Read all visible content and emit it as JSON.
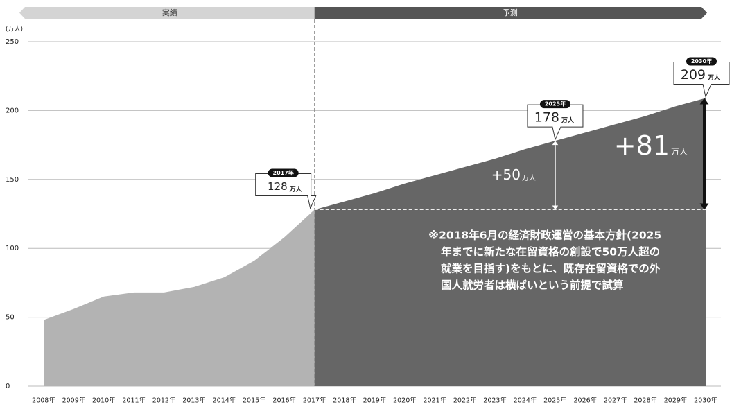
{
  "chart_data": {
    "type": "area",
    "y_unit": "(万人)",
    "categories": [
      "2008年",
      "2009年",
      "2010年",
      "2011年",
      "2012年",
      "2013年",
      "2014年",
      "2015年",
      "2016年",
      "2017年",
      "2018年",
      "2019年",
      "2020年",
      "2021年",
      "2022年",
      "2023年",
      "2024年",
      "2025年",
      "2026年",
      "2027年",
      "2028年",
      "2029年",
      "2030年"
    ],
    "series": [
      {
        "name": "実績",
        "color": "#b3b3b3",
        "band_color": "#d4d4d4",
        "text_color": "#333333",
        "values": [
          48,
          56,
          65,
          68,
          68,
          72,
          79,
          91,
          108,
          128,
          null,
          null,
          null,
          null,
          null,
          null,
          null,
          null,
          null,
          null,
          null,
          null,
          null
        ]
      },
      {
        "name": "予測",
        "color": "#666666",
        "band_color": "#555555",
        "text_color": "#ffffff",
        "values": [
          null,
          null,
          null,
          null,
          null,
          null,
          null,
          null,
          null,
          128,
          134,
          140,
          147,
          153,
          159,
          165,
          172,
          178,
          184,
          190,
          196,
          203,
          209
        ]
      }
    ],
    "ylim": [
      0,
      250
    ],
    "yticks": [
      0,
      50,
      100,
      150,
      200,
      250
    ],
    "grid": true,
    "callouts": [
      {
        "tag": "2017年",
        "value": 128,
        "unit": "万人"
      },
      {
        "tag": "2025年",
        "value": 178,
        "unit": "万人"
      },
      {
        "tag": "2030年",
        "value": 209,
        "unit": "万人"
      }
    ],
    "increase_labels": [
      {
        "label": "+50",
        "unit": "万人"
      },
      {
        "label": "+81",
        "unit": "万人"
      }
    ],
    "note_lines": [
      "※2018年6月の経済財政運営の基本方針(2025",
      "年までに新たな在留資格の創設で50万人超の",
      "就業を目指す)をもとに、既存在留資格での外",
      "国人就労者は横ばいという前提で試算"
    ]
  }
}
